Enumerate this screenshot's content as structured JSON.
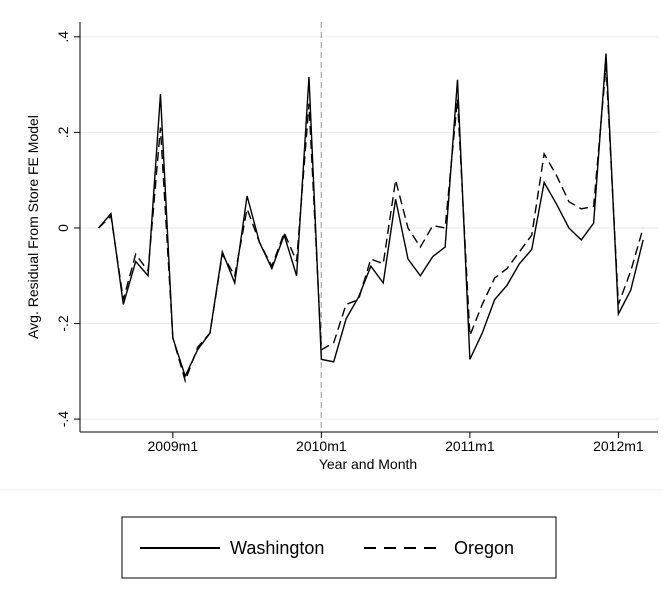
{
  "chart_data": {
    "type": "line",
    "y_label": "Avg. Residual From Store FE Model",
    "x_label": "Year and Month",
    "x": [
      582,
      583,
      584,
      585,
      586,
      587,
      588,
      589,
      590,
      591,
      592,
      593,
      594,
      595,
      596,
      597,
      598,
      599,
      600,
      601,
      602,
      603,
      604,
      605,
      606,
      607,
      608,
      609,
      610,
      611,
      612,
      613,
      614,
      615,
      616,
      617,
      618,
      619,
      620,
      621,
      622,
      623,
      624,
      625,
      626
    ],
    "series": [
      {
        "name": "Washington",
        "color": "#000000",
        "dash": false,
        "values": [
          0.0,
          0.03,
          -0.16,
          -0.07,
          -0.1,
          0.28,
          -0.23,
          -0.31,
          -0.255,
          -0.22,
          -0.05,
          -0.115,
          0.067,
          -0.03,
          -0.085,
          -0.015,
          -0.1,
          0.316,
          -0.275,
          -0.28,
          -0.19,
          -0.145,
          -0.08,
          -0.115,
          0.06,
          -0.065,
          -0.1,
          -0.06,
          -0.04,
          0.31,
          -0.275,
          -0.22,
          -0.15,
          -0.12,
          -0.075,
          -0.045,
          0.095,
          0.05,
          0.0,
          -0.025,
          0.01,
          0.365,
          -0.18,
          -0.13,
          -0.025
        ]
      },
      {
        "name": "Oregon",
        "color": "#000000",
        "dash": true,
        "values": [
          0.0,
          0.025,
          -0.15,
          -0.055,
          -0.09,
          0.21,
          -0.23,
          -0.32,
          -0.25,
          -0.22,
          -0.055,
          -0.1,
          0.04,
          -0.03,
          -0.08,
          -0.01,
          -0.07,
          0.26,
          -0.255,
          -0.24,
          -0.16,
          -0.15,
          -0.065,
          -0.075,
          0.1,
          0.0,
          -0.04,
          0.005,
          0.0,
          0.27,
          -0.225,
          -0.16,
          -0.105,
          -0.085,
          -0.05,
          -0.015,
          0.155,
          0.11,
          0.055,
          0.04,
          0.045,
          0.34,
          -0.16,
          -0.09,
          0.0
        ]
      }
    ],
    "xlim": [
      580.5,
      627.2
    ],
    "ylim": [
      -0.427,
      0.431
    ],
    "xticks": [
      {
        "value": 588,
        "label": "2009m1"
      },
      {
        "value": 600,
        "label": "2010m1"
      },
      {
        "value": 612,
        "label": "2011m1"
      },
      {
        "value": 624,
        "label": "2012m1"
      }
    ],
    "yticks": [
      {
        "value": -0.4,
        "label": "-.4"
      },
      {
        "value": -0.2,
        "label": "-.2"
      },
      0,
      {
        "value": 0.2,
        "label": ".2"
      },
      {
        "value": 0.4,
        "label": ".4"
      }
    ],
    "vline": 600,
    "grid": true,
    "legend": "bottom"
  }
}
